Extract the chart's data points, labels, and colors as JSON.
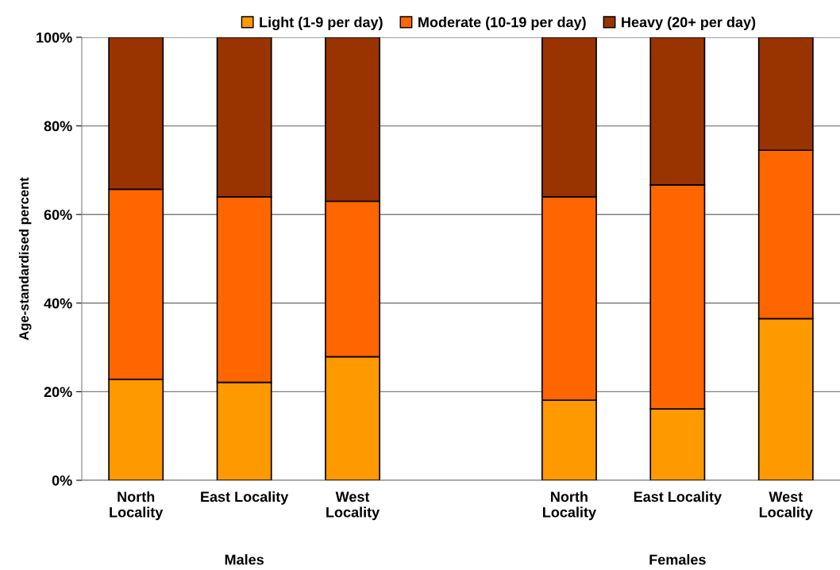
{
  "chart_data": {
    "type": "bar",
    "stacked": true,
    "categories": [
      "North\nLocality",
      "East Locality",
      "West\nLocality",
      null,
      "North\nLocality",
      "East Locality",
      "West\nLocality"
    ],
    "series": [
      {
        "name": "Light (1-9 per day)",
        "color": "#ff9900",
        "values": [
          22.8,
          22.1,
          27.9,
          null,
          18.1,
          16.1,
          36.5
        ]
      },
      {
        "name": "Moderate (10-19 per day)",
        "color": "#ff6600",
        "values": [
          42.9,
          41.9,
          35.1,
          null,
          45.9,
          50.6,
          38.0
        ]
      },
      {
        "name": "Heavy (20+ per day)",
        "color": "#993300",
        "values": [
          34.3,
          36.0,
          37.0,
          null,
          36.0,
          33.3,
          25.5
        ]
      }
    ],
    "ylabel": "Age-standardised percent",
    "ylim": [
      0,
      100
    ],
    "yticks": [
      {
        "value": 0,
        "label": "0%"
      },
      {
        "value": 20,
        "label": "20%"
      },
      {
        "value": 40,
        "label": "40%"
      },
      {
        "value": 60,
        "label": "60%"
      },
      {
        "value": 80,
        "label": "80%"
      },
      {
        "value": 100,
        "label": "100%"
      }
    ],
    "grid": "y",
    "legend": "top",
    "annotations": [
      "Males",
      "Females"
    ]
  }
}
